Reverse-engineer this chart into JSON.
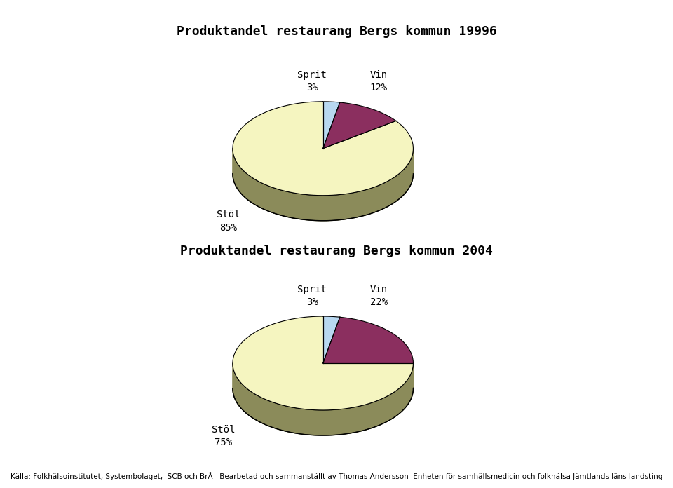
{
  "title1": "Produktandel restaurang Bergs kommun 19996",
  "title2": "Produktandel restaurang Bergs kommun 2004",
  "chart1": {
    "labels": [
      "Sprit",
      "Vin",
      "Stöl"
    ],
    "values": [
      3,
      12,
      85
    ],
    "colors": [
      "#b8d8f0",
      "#8b2f5f",
      "#f5f5c0"
    ],
    "side_color": "#8b8b5a",
    "pct_labels": [
      "3%",
      "12%",
      "85%"
    ]
  },
  "chart2": {
    "labels": [
      "Sprit",
      "Vin",
      "Stöl"
    ],
    "values": [
      3,
      22,
      75
    ],
    "colors": [
      "#b8d8f0",
      "#8b2f5f",
      "#f5f5c0"
    ],
    "side_color": "#8b8b5a",
    "pct_labels": [
      "3%",
      "22%",
      "75%"
    ]
  },
  "footer": "Källa: Folkhälsoinstitutet, Systembolaget,  SCB och BrÅ   Bearbetad och sammanställt av Thomas Andersson  Enheten för samhällsmedicin och folkhälsa Jämtlands läns landsting",
  "title_fontsize": 13,
  "label_fontsize": 10,
  "footer_fontsize": 7.5,
  "background_color": "#ffffff",
  "title_font": "monospace"
}
